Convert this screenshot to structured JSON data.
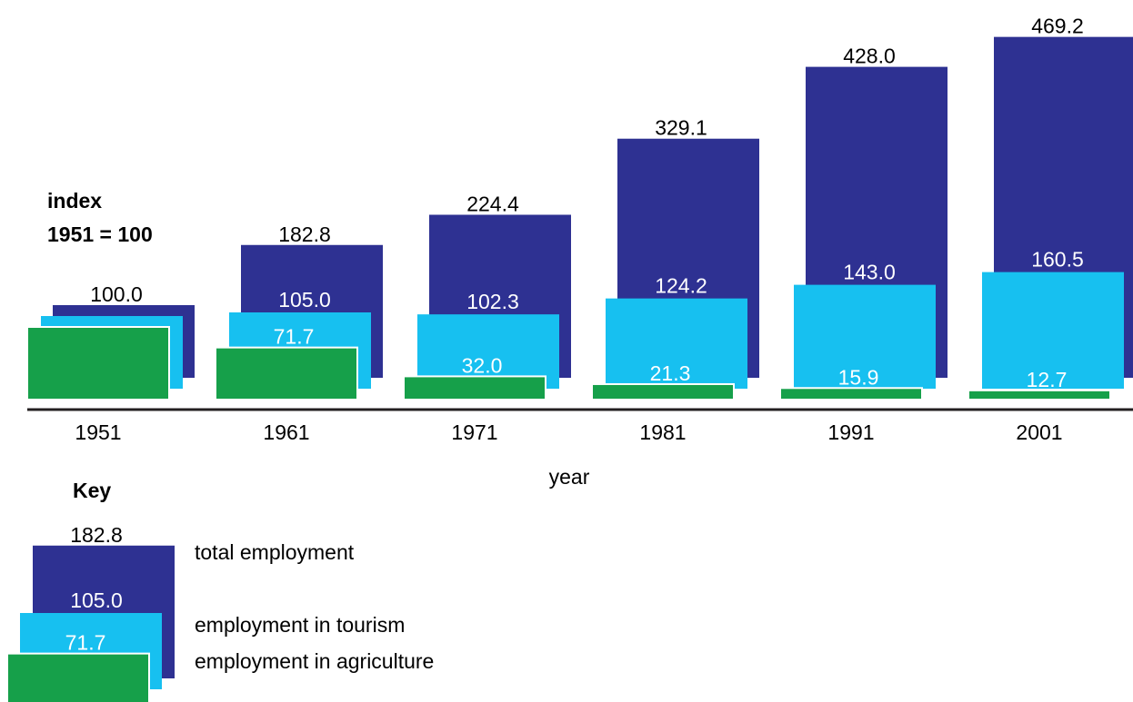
{
  "chart_data": {
    "type": "bar",
    "ylabel": [
      "index",
      "1951 = 100"
    ],
    "xlabel": "year",
    "categories": [
      "1951",
      "1961",
      "1971",
      "1981",
      "1991",
      "2001"
    ],
    "series": [
      {
        "name": "total employment",
        "values": [
          100.0,
          182.8,
          224.4,
          329.1,
          428.0,
          469.2
        ]
      },
      {
        "name": "employment in tourism",
        "values": [
          100.0,
          105.0,
          102.3,
          124.2,
          143.0,
          160.5
        ]
      },
      {
        "name": "employment in agriculture",
        "values": [
          100.0,
          71.7,
          32.0,
          21.3,
          15.9,
          12.7
        ]
      }
    ],
    "value_labels": [
      {
        "total": "100.0",
        "tourism": "",
        "agriculture": ""
      },
      {
        "total": "182.8",
        "tourism": "105.0",
        "agriculture": "71.7"
      },
      {
        "total": "224.4",
        "tourism": "102.3",
        "agriculture": "32.0"
      },
      {
        "total": "329.1",
        "tourism": "124.2",
        "agriculture": "21.3"
      },
      {
        "total": "428.0",
        "tourism": "143.0",
        "agriculture": "15.9"
      },
      {
        "total": "469.2",
        "tourism": "160.5",
        "agriculture": "12.7"
      }
    ],
    "colors": {
      "total": "#2e3192",
      "tourism": "#17c0f0",
      "agriculture": "#16a04a"
    }
  },
  "key": {
    "title": "Key",
    "sample": {
      "total": 182.8,
      "tourism": 105.0,
      "agriculture": 71.7
    },
    "sample_labels": {
      "total": "182.8",
      "tourism": "105.0",
      "agriculture": "71.7"
    },
    "labels": {
      "total": "total employment",
      "tourism": "employment in tourism",
      "agriculture": "employment in agriculture"
    }
  }
}
